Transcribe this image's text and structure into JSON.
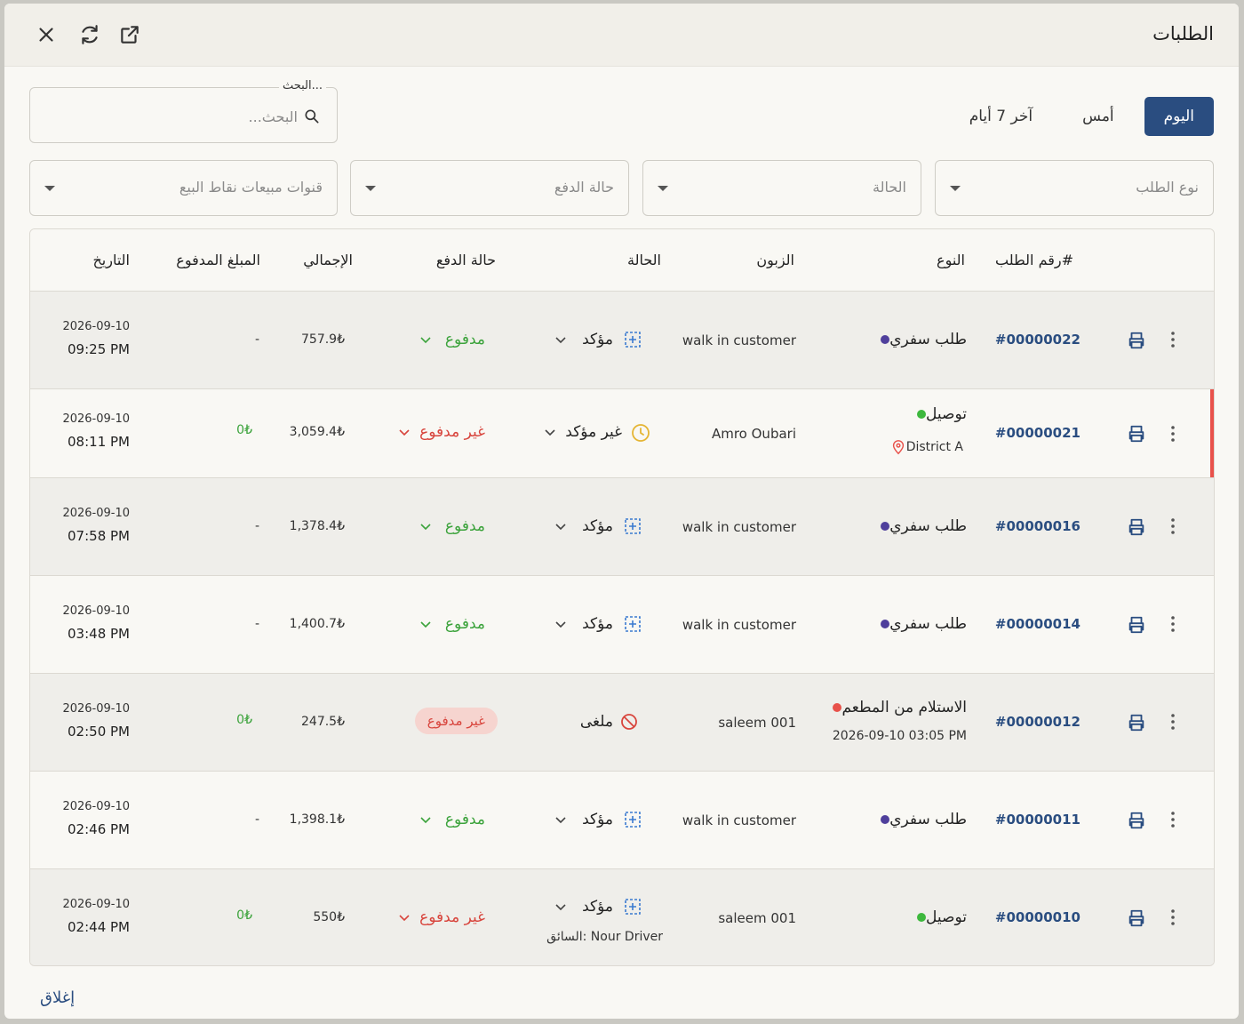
{
  "header": {
    "title": "الطلبات"
  },
  "date_tabs": [
    {
      "label": "اليوم",
      "active": true
    },
    {
      "label": "أمس",
      "active": false
    },
    {
      "label": "آخر 7 أيام",
      "active": false
    }
  ],
  "search": {
    "legend": "البحث...",
    "placeholder": "البحث..."
  },
  "filters": {
    "order_type": "نوع الطلب",
    "status": "الحالة",
    "payment_status": "حالة الدفع",
    "pos_channels": "قنوات مبيعات نقاط البيع"
  },
  "columns": {
    "order_no": "رقم الطلب#",
    "type": "النوع",
    "customer": "الزبون",
    "status": "الحالة",
    "payment_status": "حالة الدفع",
    "total": "الإجمالي",
    "paid_amount": "المبلغ المدفوع",
    "date": "التاريخ"
  },
  "orders": [
    {
      "order_no": "#00000022",
      "type": "طلب سفري",
      "type_color": "#4f3f9c",
      "customer": "walk in customer",
      "status": "مؤكد",
      "payment": "مدفوع",
      "total": "757.9₺",
      "paid": "-",
      "date": "2026-09-10",
      "time": "09:25 PM"
    },
    {
      "order_no": "#00000021",
      "type": "توصيل",
      "type_color": "#3db83d",
      "type_sub": "District A",
      "customer": "Amro Oubari",
      "status": "غير مؤكد",
      "payment": "غير مدفوع",
      "total": "3,059.4₺",
      "paid": "0₺",
      "date": "2026-09-10",
      "time": "08:11 PM"
    },
    {
      "order_no": "#00000016",
      "type": "طلب سفري",
      "type_color": "#4f3f9c",
      "customer": "walk in customer",
      "status": "مؤكد",
      "payment": "مدفوع",
      "total": "1,378.4₺",
      "paid": "-",
      "date": "2026-09-10",
      "time": "07:58 PM"
    },
    {
      "order_no": "#00000014",
      "type": "طلب سفري",
      "type_color": "#4f3f9c",
      "customer": "walk in customer",
      "status": "مؤكد",
      "payment": "مدفوع",
      "total": "1,400.7₺",
      "paid": "-",
      "date": "2026-09-10",
      "time": "03:48 PM"
    },
    {
      "order_no": "#00000012",
      "type": "الاستلام من المطعم",
      "type_color": "#e8514a",
      "type_sub": "2026-09-10 03:05 PM",
      "customer": "saleem 001",
      "status": "ملغى",
      "payment": "غير مدفوع",
      "total": "247.5₺",
      "paid": "0₺",
      "date": "2026-09-10",
      "time": "02:50 PM"
    },
    {
      "order_no": "#00000011",
      "type": "طلب سفري",
      "type_color": "#4f3f9c",
      "customer": "walk in customer",
      "status": "مؤكد",
      "payment": "مدفوع",
      "total": "1,398.1₺",
      "paid": "-",
      "date": "2026-09-10",
      "time": "02:46 PM"
    },
    {
      "order_no": "#00000010",
      "type": "توصيل",
      "type_color": "#3db83d",
      "customer": "saleem 001",
      "status": "مؤكد",
      "status_sub": "السائق: Nour Driver",
      "payment": "غير مدفوع",
      "total": "550₺",
      "paid": "0₺",
      "date": "2026-09-10",
      "time": "02:44 PM"
    }
  ],
  "footer": {
    "close_label": "إغلاق"
  },
  "colors": {
    "accent": "#2a4d80",
    "paid": "#3ca33c",
    "unpaid": "#d8453d",
    "flag": "#e8514a"
  }
}
